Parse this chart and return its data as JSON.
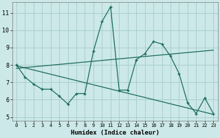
{
  "xlabel": "Humidex (Indice chaleur)",
  "background_color": "#cce8e8",
  "grid_major_color": "#aacfcf",
  "line_color": "#1a6b5a",
  "xlim": [
    -0.5,
    23.5
  ],
  "ylim": [
    4.8,
    11.6
  ],
  "xticks": [
    0,
    1,
    2,
    3,
    4,
    5,
    6,
    7,
    8,
    9,
    10,
    11,
    12,
    13,
    14,
    15,
    16,
    17,
    18,
    19,
    20,
    21,
    22,
    23
  ],
  "yticks": [
    5,
    6,
    7,
    8,
    9,
    10,
    11
  ],
  "curve1_x": [
    0,
    1,
    2,
    3,
    4,
    5,
    6,
    7,
    8,
    9,
    10,
    11,
    12,
    13,
    14,
    15,
    16,
    17,
    18,
    19,
    20,
    21,
    22,
    23
  ],
  "curve1_y": [
    8.0,
    7.3,
    6.9,
    6.6,
    6.6,
    6.2,
    5.75,
    6.35,
    6.35,
    8.8,
    10.5,
    11.35,
    6.55,
    6.55,
    8.3,
    8.65,
    9.35,
    9.2,
    8.5,
    7.5,
    5.8,
    5.2,
    6.1,
    5.2
  ],
  "curve2_x": [
    0,
    23
  ],
  "curve2_y": [
    7.8,
    8.85
  ],
  "curve3_x": [
    0,
    23
  ],
  "curve3_y": [
    7.95,
    5.15
  ]
}
